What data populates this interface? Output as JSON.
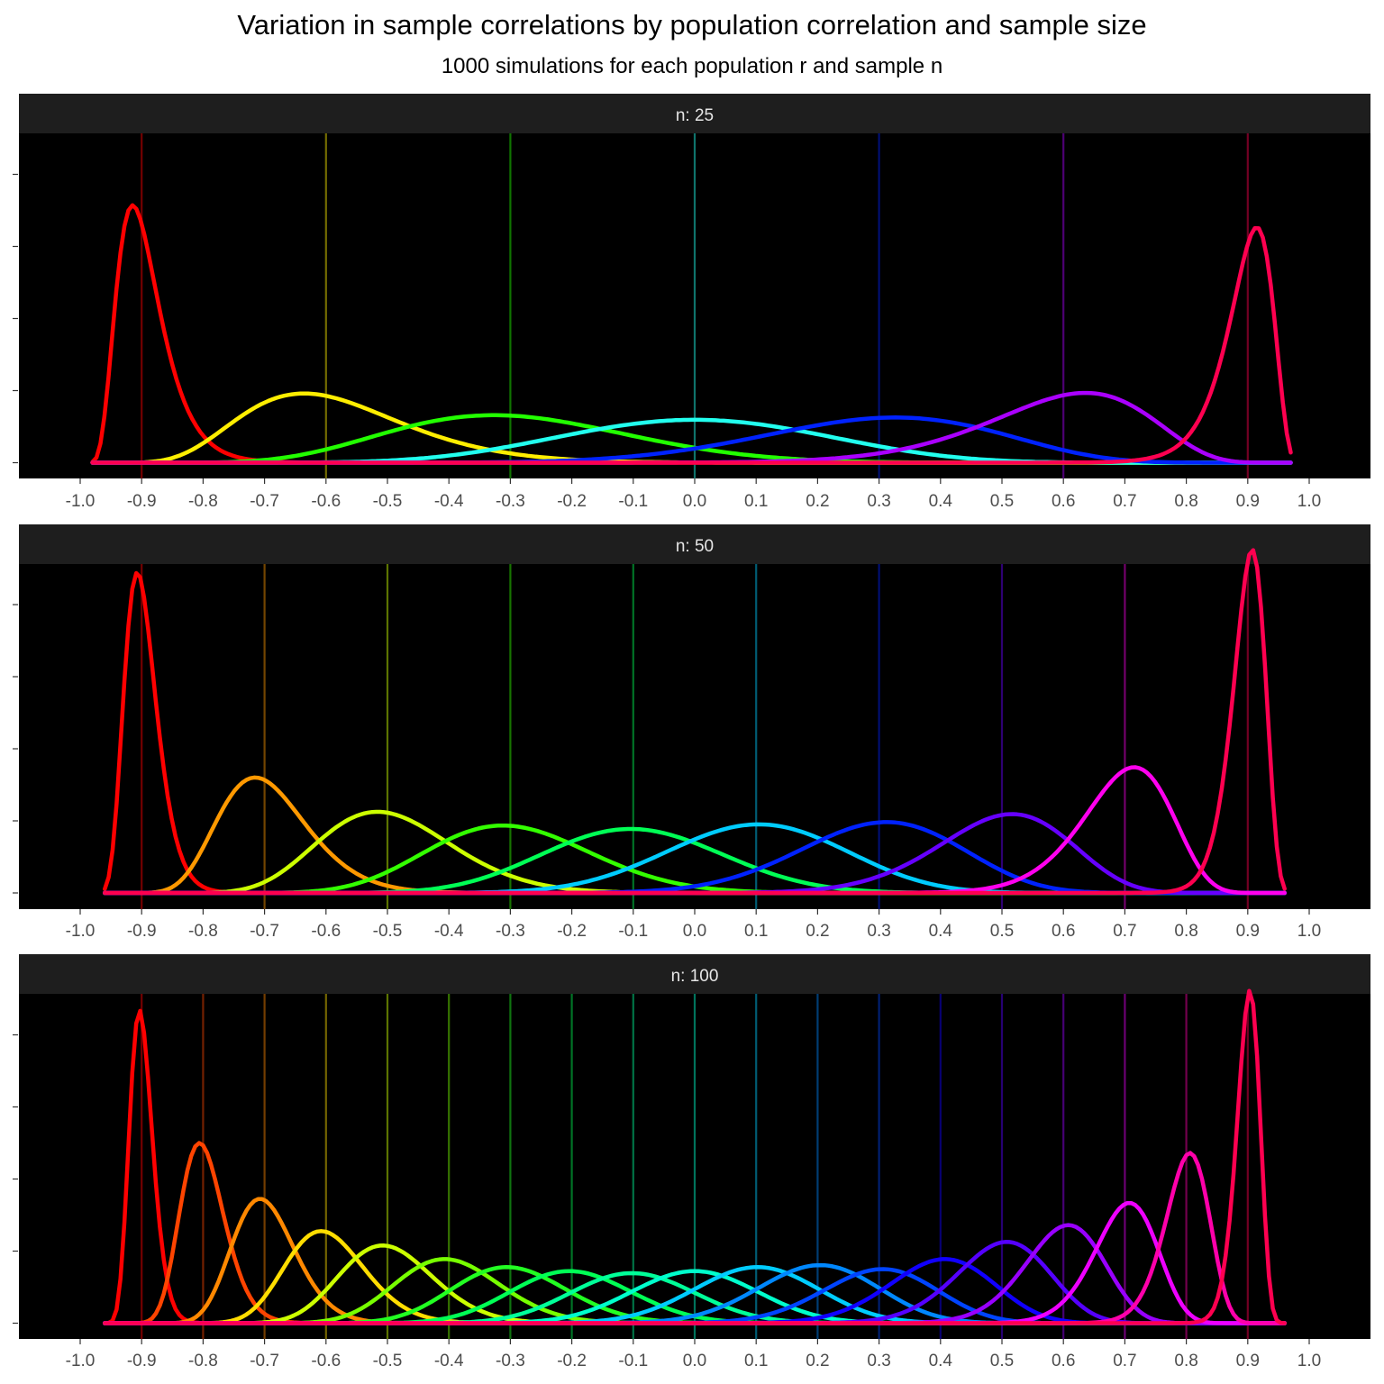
{
  "chart_data": {
    "type": "line",
    "title": "Variation in sample correlations by population correlation and sample size",
    "subtitle": "1000 simulations for each population r and sample n",
    "xlabel": "",
    "ylabel": "",
    "xlim": [
      -1.0,
      1.0
    ],
    "x_ticks": [
      "-1.0",
      "-0.9",
      "-0.8",
      "-0.7",
      "-0.6",
      "-0.5",
      "-0.4",
      "-0.3",
      "-0.2",
      "-0.1",
      "0.0",
      "0.1",
      "0.2",
      "0.3",
      "0.4",
      "0.5",
      "0.6",
      "0.7",
      "0.8",
      "0.9",
      "1.0"
    ],
    "y_ticks_labeled": false,
    "background": "#000000",
    "strip_color": "#1e1e1e",
    "grid": false,
    "legend": "none",
    "facets": [
      {
        "strip_label": "n: 25",
        "ylim": [
          0,
          5.6
        ],
        "population_r": [
          -0.9,
          -0.6,
          -0.3,
          0.0,
          0.3,
          0.6,
          0.9
        ],
        "series_colors": [
          "#ff0000",
          "#ffee00",
          "#22ff00",
          "#22ffee",
          "#0022ff",
          "#aa00ff",
          "#ff0050"
        ],
        "density_peaks": [
          4.5,
          1.21,
          0.83,
          0.75,
          0.79,
          1.22,
          4.1
        ]
      },
      {
        "strip_label": "n: 50",
        "ylim": [
          0,
          5.6
        ],
        "population_r": [
          -0.9,
          -0.7,
          -0.5,
          -0.3,
          -0.1,
          0.1,
          0.3,
          0.5,
          0.7,
          0.9
        ],
        "series_colors": [
          "#ff0000",
          "#ff9900",
          "#ccff00",
          "#33ff00",
          "#00ff55",
          "#00ccff",
          "#0022ff",
          "#6600ff",
          "#ff00ee",
          "#ff0050"
        ],
        "density_peaks": [
          5.6,
          2.02,
          1.42,
          1.18,
          1.12,
          1.2,
          1.24,
          1.38,
          2.2,
          6.0
        ]
      },
      {
        "strip_label": "n: 100",
        "ylim": [
          0,
          8.0
        ],
        "population_r": [
          -0.9,
          -0.8,
          -0.7,
          -0.6,
          -0.5,
          -0.4,
          -0.3,
          -0.2,
          -0.1,
          0.0,
          0.1,
          0.2,
          0.3,
          0.4,
          0.5,
          0.6,
          0.7,
          0.8,
          0.9
        ],
        "series_colors": [
          "#ff0000",
          "#ff4400",
          "#ff8800",
          "#ffdd00",
          "#ccff00",
          "#77ff00",
          "#22ff22",
          "#00ff55",
          "#00ff99",
          "#00ffcc",
          "#00ccff",
          "#0088ff",
          "#0044ff",
          "#1100ff",
          "#5500ff",
          "#9900ff",
          "#ee00ff",
          "#ff00aa",
          "#ff0050"
        ],
        "density_peaks": [
          7.8,
          4.5,
          3.1,
          2.3,
          1.94,
          1.6,
          1.4,
          1.3,
          1.25,
          1.3,
          1.4,
          1.45,
          1.35,
          1.6,
          2.03,
          2.45,
          3.0,
          4.25,
          8.3
        ]
      }
    ]
  }
}
